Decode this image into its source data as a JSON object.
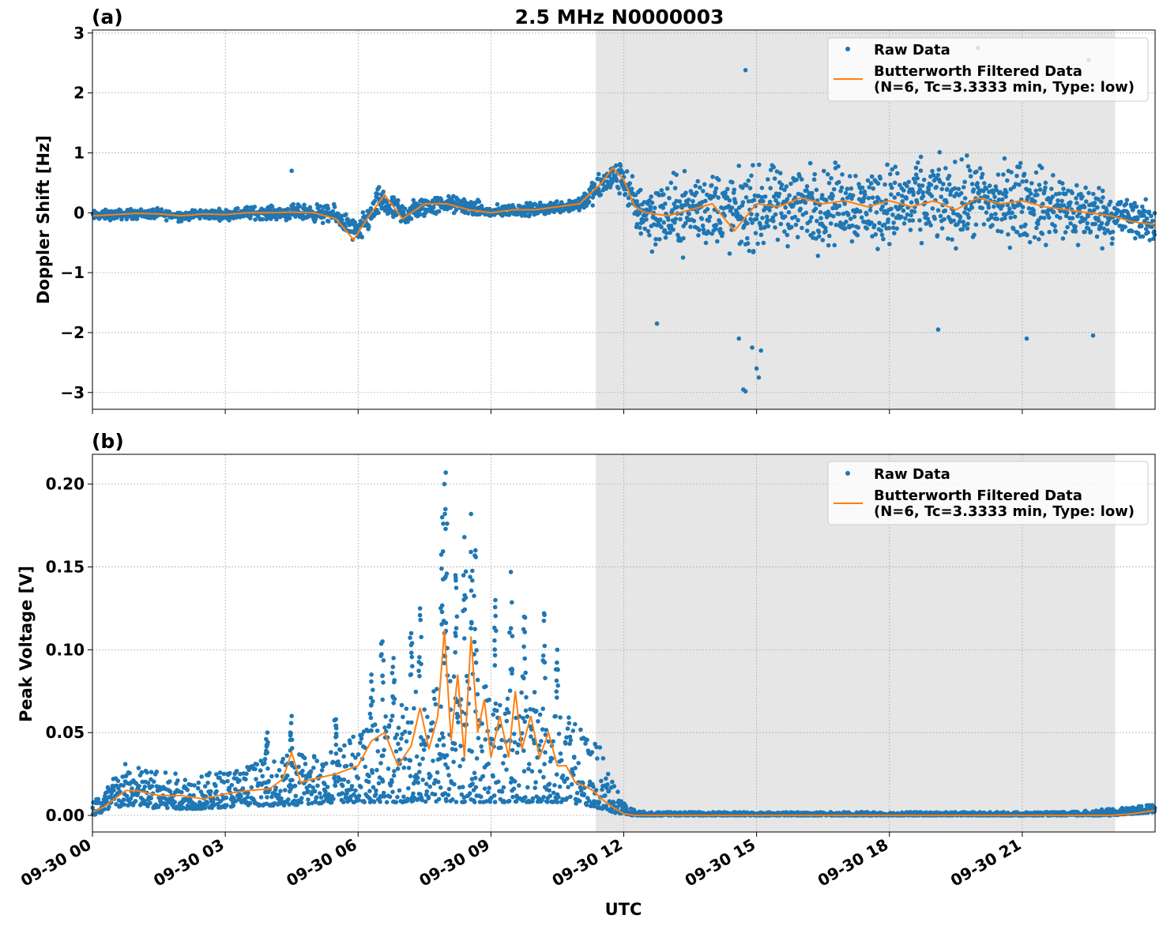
{
  "figure": {
    "title": "2.5 MHz N0000003",
    "xlabel": "UTC"
  },
  "chart_data": [
    {
      "type": "scatter",
      "panel_label": "(a)",
      "title": "2.5 MHz N0000003",
      "xlabel": "",
      "ylabel": "Doppler Shift [Hz]",
      "x_unit": "hours UTC on 09-30",
      "xlim": [
        0,
        24
      ],
      "ylim": [
        -3.28,
        3.05
      ],
      "y_ticks": [
        {
          "value": 3,
          "label": "3"
        },
        {
          "value": 2,
          "label": "2"
        },
        {
          "value": 1,
          "label": "1"
        },
        {
          "value": 0,
          "label": "0"
        },
        {
          "value": -1,
          "label": "−1"
        },
        {
          "value": -2,
          "label": "−2"
        },
        {
          "value": -3,
          "label": "−3"
        }
      ],
      "shaded_region": {
        "x_start": 11.37,
        "x_end": 23.1,
        "color": "#e6e6e6"
      },
      "grid": true,
      "legend_position": "top-right",
      "series": [
        {
          "name": "Raw Data",
          "kind": "markers",
          "color": "#1f77b4",
          "x": [
            0.0,
            0.5,
            1.0,
            1.5,
            2.0,
            2.5,
            3.0,
            3.5,
            4.0,
            4.5,
            5.0,
            5.5,
            6.0,
            6.5,
            7.0,
            7.5,
            8.0,
            8.5,
            9.0,
            9.5,
            10.0,
            10.5,
            11.0,
            11.5,
            11.75,
            12.0,
            12.25,
            12.5,
            13.0,
            13.5,
            14.0,
            14.5,
            15.0,
            15.5,
            16.0,
            16.5,
            17.0,
            17.5,
            18.0,
            18.5,
            19.0,
            19.5,
            20.0,
            20.5,
            21.0,
            21.5,
            22.0,
            22.5,
            23.0,
            23.5,
            24.0
          ],
          "y_center": [
            -0.05,
            -0.03,
            -0.02,
            -0.02,
            -0.05,
            -0.02,
            -0.03,
            0.0,
            0.0,
            0.0,
            0.0,
            -0.05,
            -0.35,
            0.2,
            -0.05,
            0.1,
            0.15,
            0.1,
            0.0,
            0.05,
            0.05,
            0.1,
            0.15,
            0.45,
            0.6,
            0.55,
            0.1,
            0.0,
            -0.05,
            0.05,
            0.1,
            0.0,
            0.05,
            0.1,
            0.15,
            0.1,
            0.2,
            0.1,
            0.15,
            0.15,
            0.2,
            0.15,
            0.2,
            0.15,
            0.2,
            0.1,
            0.05,
            0.0,
            -0.05,
            -0.1,
            -0.2
          ],
          "y_spread": [
            0.12,
            0.12,
            0.12,
            0.12,
            0.12,
            0.12,
            0.12,
            0.15,
            0.15,
            0.18,
            0.2,
            0.22,
            0.3,
            0.35,
            0.3,
            0.25,
            0.2,
            0.2,
            0.15,
            0.15,
            0.15,
            0.15,
            0.2,
            0.35,
            0.35,
            0.4,
            0.6,
            0.8,
            0.85,
            0.9,
            0.95,
            0.95,
            0.95,
            0.95,
            0.95,
            0.95,
            0.95,
            0.95,
            0.95,
            0.95,
            0.95,
            0.95,
            0.95,
            0.95,
            0.95,
            0.9,
            0.85,
            0.75,
            0.6,
            0.5,
            0.45
          ],
          "outliers": [
            {
              "x": 14.75,
              "y": 2.38
            },
            {
              "x": 14.7,
              "y": -2.95
            },
            {
              "x": 14.75,
              "y": -2.98
            },
            {
              "x": 15.0,
              "y": -2.6
            },
            {
              "x": 15.05,
              "y": -2.75
            },
            {
              "x": 14.6,
              "y": -2.1
            },
            {
              "x": 20.0,
              "y": 2.75
            },
            {
              "x": 22.5,
              "y": 2.55
            },
            {
              "x": 21.1,
              "y": -2.1
            },
            {
              "x": 22.6,
              "y": -2.05
            },
            {
              "x": 12.75,
              "y": -1.85
            },
            {
              "x": 15.1,
              "y": -2.3
            },
            {
              "x": 14.9,
              "y": -2.25
            },
            {
              "x": 19.1,
              "y": -1.95
            },
            {
              "x": 4.5,
              "y": 0.7
            }
          ]
        },
        {
          "name": "Butterworth Filtered Data\n(N=6, Tc=3.3333 min, Type: low)",
          "kind": "line",
          "color": "#ff7f0e",
          "x": [
            0.0,
            0.5,
            1.0,
            1.5,
            2.0,
            2.5,
            3.0,
            3.5,
            4.0,
            4.5,
            5.0,
            5.5,
            5.9,
            6.2,
            6.6,
            7.0,
            7.5,
            8.0,
            8.5,
            9.0,
            9.5,
            10.0,
            10.5,
            11.0,
            11.5,
            11.75,
            12.0,
            12.25,
            12.5,
            13.0,
            13.5,
            14.0,
            14.5,
            15.0,
            15.5,
            16.0,
            16.5,
            17.0,
            17.5,
            18.0,
            18.5,
            19.0,
            19.5,
            20.0,
            20.5,
            21.0,
            21.5,
            22.0,
            22.5,
            23.0,
            23.5,
            24.0
          ],
          "y": [
            -0.05,
            -0.03,
            -0.01,
            -0.02,
            -0.05,
            -0.02,
            -0.03,
            0.0,
            0.0,
            0.01,
            0.0,
            -0.1,
            -0.45,
            -0.1,
            0.3,
            -0.1,
            0.15,
            0.15,
            0.05,
            0.0,
            0.05,
            0.05,
            0.1,
            0.15,
            0.5,
            0.75,
            0.55,
            0.1,
            0.0,
            -0.05,
            0.05,
            0.15,
            -0.3,
            0.15,
            0.1,
            0.25,
            0.15,
            0.2,
            0.1,
            0.2,
            0.1,
            0.2,
            0.05,
            0.25,
            0.15,
            0.2,
            0.1,
            0.05,
            0.0,
            -0.05,
            -0.15,
            -0.2
          ]
        }
      ]
    },
    {
      "type": "scatter",
      "panel_label": "(b)",
      "title": "",
      "xlabel": "UTC",
      "ylabel": "Peak Voltage [V]",
      "x_unit": "hours UTC on 09-30",
      "xlim": [
        0,
        24
      ],
      "ylim": [
        -0.01,
        0.218
      ],
      "y_ticks": [
        {
          "value": 0.0,
          "label": "0.00"
        },
        {
          "value": 0.05,
          "label": "0.05"
        },
        {
          "value": 0.1,
          "label": "0.10"
        },
        {
          "value": 0.15,
          "label": "0.15"
        },
        {
          "value": 0.2,
          "label": "0.20"
        }
      ],
      "x_ticks": [
        {
          "value": 0,
          "label": "09-30 00"
        },
        {
          "value": 3,
          "label": "09-30 03"
        },
        {
          "value": 6,
          "label": "09-30 06"
        },
        {
          "value": 9,
          "label": "09-30 09"
        },
        {
          "value": 12,
          "label": "09-30 12"
        },
        {
          "value": 15,
          "label": "09-30 15"
        },
        {
          "value": 18,
          "label": "09-30 18"
        },
        {
          "value": 21,
          "label": "09-30 21"
        }
      ],
      "shaded_region": {
        "x_start": 11.37,
        "x_end": 23.1,
        "color": "#e6e6e6"
      },
      "grid": true,
      "legend_position": "top-right",
      "series": [
        {
          "name": "Raw Data",
          "kind": "markers",
          "color": "#1f77b4",
          "x": [
            0.0,
            0.25,
            0.5,
            0.75,
            1.0,
            1.5,
            2.0,
            2.5,
            3.0,
            3.5,
            4.0,
            4.5,
            5.0,
            5.5,
            6.0,
            6.5,
            7.0,
            7.5,
            8.0,
            8.5,
            9.0,
            9.5,
            10.0,
            10.5,
            11.0,
            11.5,
            11.75,
            12.0,
            12.25,
            12.5,
            13.0,
            14.0,
            15.0,
            16.0,
            17.0,
            18.0,
            19.0,
            20.0,
            21.0,
            22.0,
            22.5,
            23.0,
            23.5,
            24.0
          ],
          "y_low": [
            0.0,
            0.002,
            0.004,
            0.006,
            0.006,
            0.004,
            0.004,
            0.004,
            0.005,
            0.006,
            0.006,
            0.006,
            0.007,
            0.008,
            0.008,
            0.008,
            0.008,
            0.008,
            0.008,
            0.008,
            0.008,
            0.008,
            0.008,
            0.008,
            0.007,
            0.004,
            0.002,
            0.0,
            0.0,
            0.0,
            0.0,
            0.0,
            0.0,
            0.0,
            0.0,
            0.0,
            0.0,
            0.0,
            0.0,
            0.0,
            0.0,
            0.0,
            0.001,
            0.002
          ],
          "y_high": [
            0.01,
            0.015,
            0.025,
            0.032,
            0.03,
            0.027,
            0.025,
            0.025,
            0.028,
            0.032,
            0.035,
            0.038,
            0.04,
            0.042,
            0.05,
            0.06,
            0.07,
            0.08,
            0.09,
            0.09,
            0.085,
            0.08,
            0.075,
            0.065,
            0.055,
            0.04,
            0.025,
            0.008,
            0.003,
            0.002,
            0.002,
            0.002,
            0.002,
            0.002,
            0.002,
            0.002,
            0.002,
            0.002,
            0.002,
            0.002,
            0.003,
            0.004,
            0.005,
            0.007
          ],
          "spikes": [
            {
              "x": 7.98,
              "y": 0.207
            },
            {
              "x": 7.95,
              "y": 0.2
            },
            {
              "x": 8.55,
              "y": 0.182
            },
            {
              "x": 7.9,
              "y": 0.18
            },
            {
              "x": 8.4,
              "y": 0.168
            },
            {
              "x": 9.45,
              "y": 0.147
            },
            {
              "x": 7.4,
              "y": 0.125
            },
            {
              "x": 10.2,
              "y": 0.122
            },
            {
              "x": 8.65,
              "y": 0.16
            },
            {
              "x": 9.1,
              "y": 0.13
            },
            {
              "x": 6.8,
              "y": 0.095
            },
            {
              "x": 6.55,
              "y": 0.105
            },
            {
              "x": 6.3,
              "y": 0.085
            },
            {
              "x": 7.2,
              "y": 0.11
            },
            {
              "x": 9.75,
              "y": 0.12
            },
            {
              "x": 10.5,
              "y": 0.1
            },
            {
              "x": 4.5,
              "y": 0.06
            },
            {
              "x": 5.5,
              "y": 0.058
            },
            {
              "x": 3.95,
              "y": 0.05
            },
            {
              "x": 8.2,
              "y": 0.145
            }
          ]
        },
        {
          "name": "Butterworth Filtered Data\n(N=6, Tc=3.3333 min, Type: low)",
          "kind": "line",
          "color": "#ff7f0e",
          "x": [
            0.0,
            0.25,
            0.5,
            0.75,
            1.0,
            1.5,
            2.0,
            2.5,
            3.0,
            3.5,
            4.0,
            4.3,
            4.5,
            4.7,
            5.0,
            5.5,
            6.0,
            6.3,
            6.6,
            6.9,
            7.2,
            7.4,
            7.6,
            7.8,
            7.95,
            8.1,
            8.25,
            8.4,
            8.55,
            8.7,
            8.85,
            9.0,
            9.2,
            9.4,
            9.55,
            9.7,
            9.9,
            10.1,
            10.3,
            10.5,
            10.7,
            10.9,
            11.1,
            11.3,
            11.5,
            11.75,
            12.0,
            12.25,
            12.5,
            13.0,
            15.0,
            18.0,
            21.0,
            22.5,
            23.0,
            23.5,
            24.0
          ],
          "y": [
            0.002,
            0.005,
            0.01,
            0.015,
            0.015,
            0.012,
            0.012,
            0.01,
            0.013,
            0.015,
            0.016,
            0.022,
            0.038,
            0.02,
            0.022,
            0.025,
            0.03,
            0.045,
            0.05,
            0.03,
            0.042,
            0.065,
            0.04,
            0.06,
            0.112,
            0.045,
            0.085,
            0.035,
            0.108,
            0.05,
            0.07,
            0.035,
            0.06,
            0.035,
            0.075,
            0.04,
            0.06,
            0.035,
            0.05,
            0.03,
            0.03,
            0.02,
            0.018,
            0.015,
            0.01,
            0.005,
            0.001,
            0.0,
            0.0,
            0.0,
            0.0,
            0.0,
            0.0,
            0.0,
            0.0,
            0.001,
            0.003
          ]
        }
      ]
    }
  ]
}
